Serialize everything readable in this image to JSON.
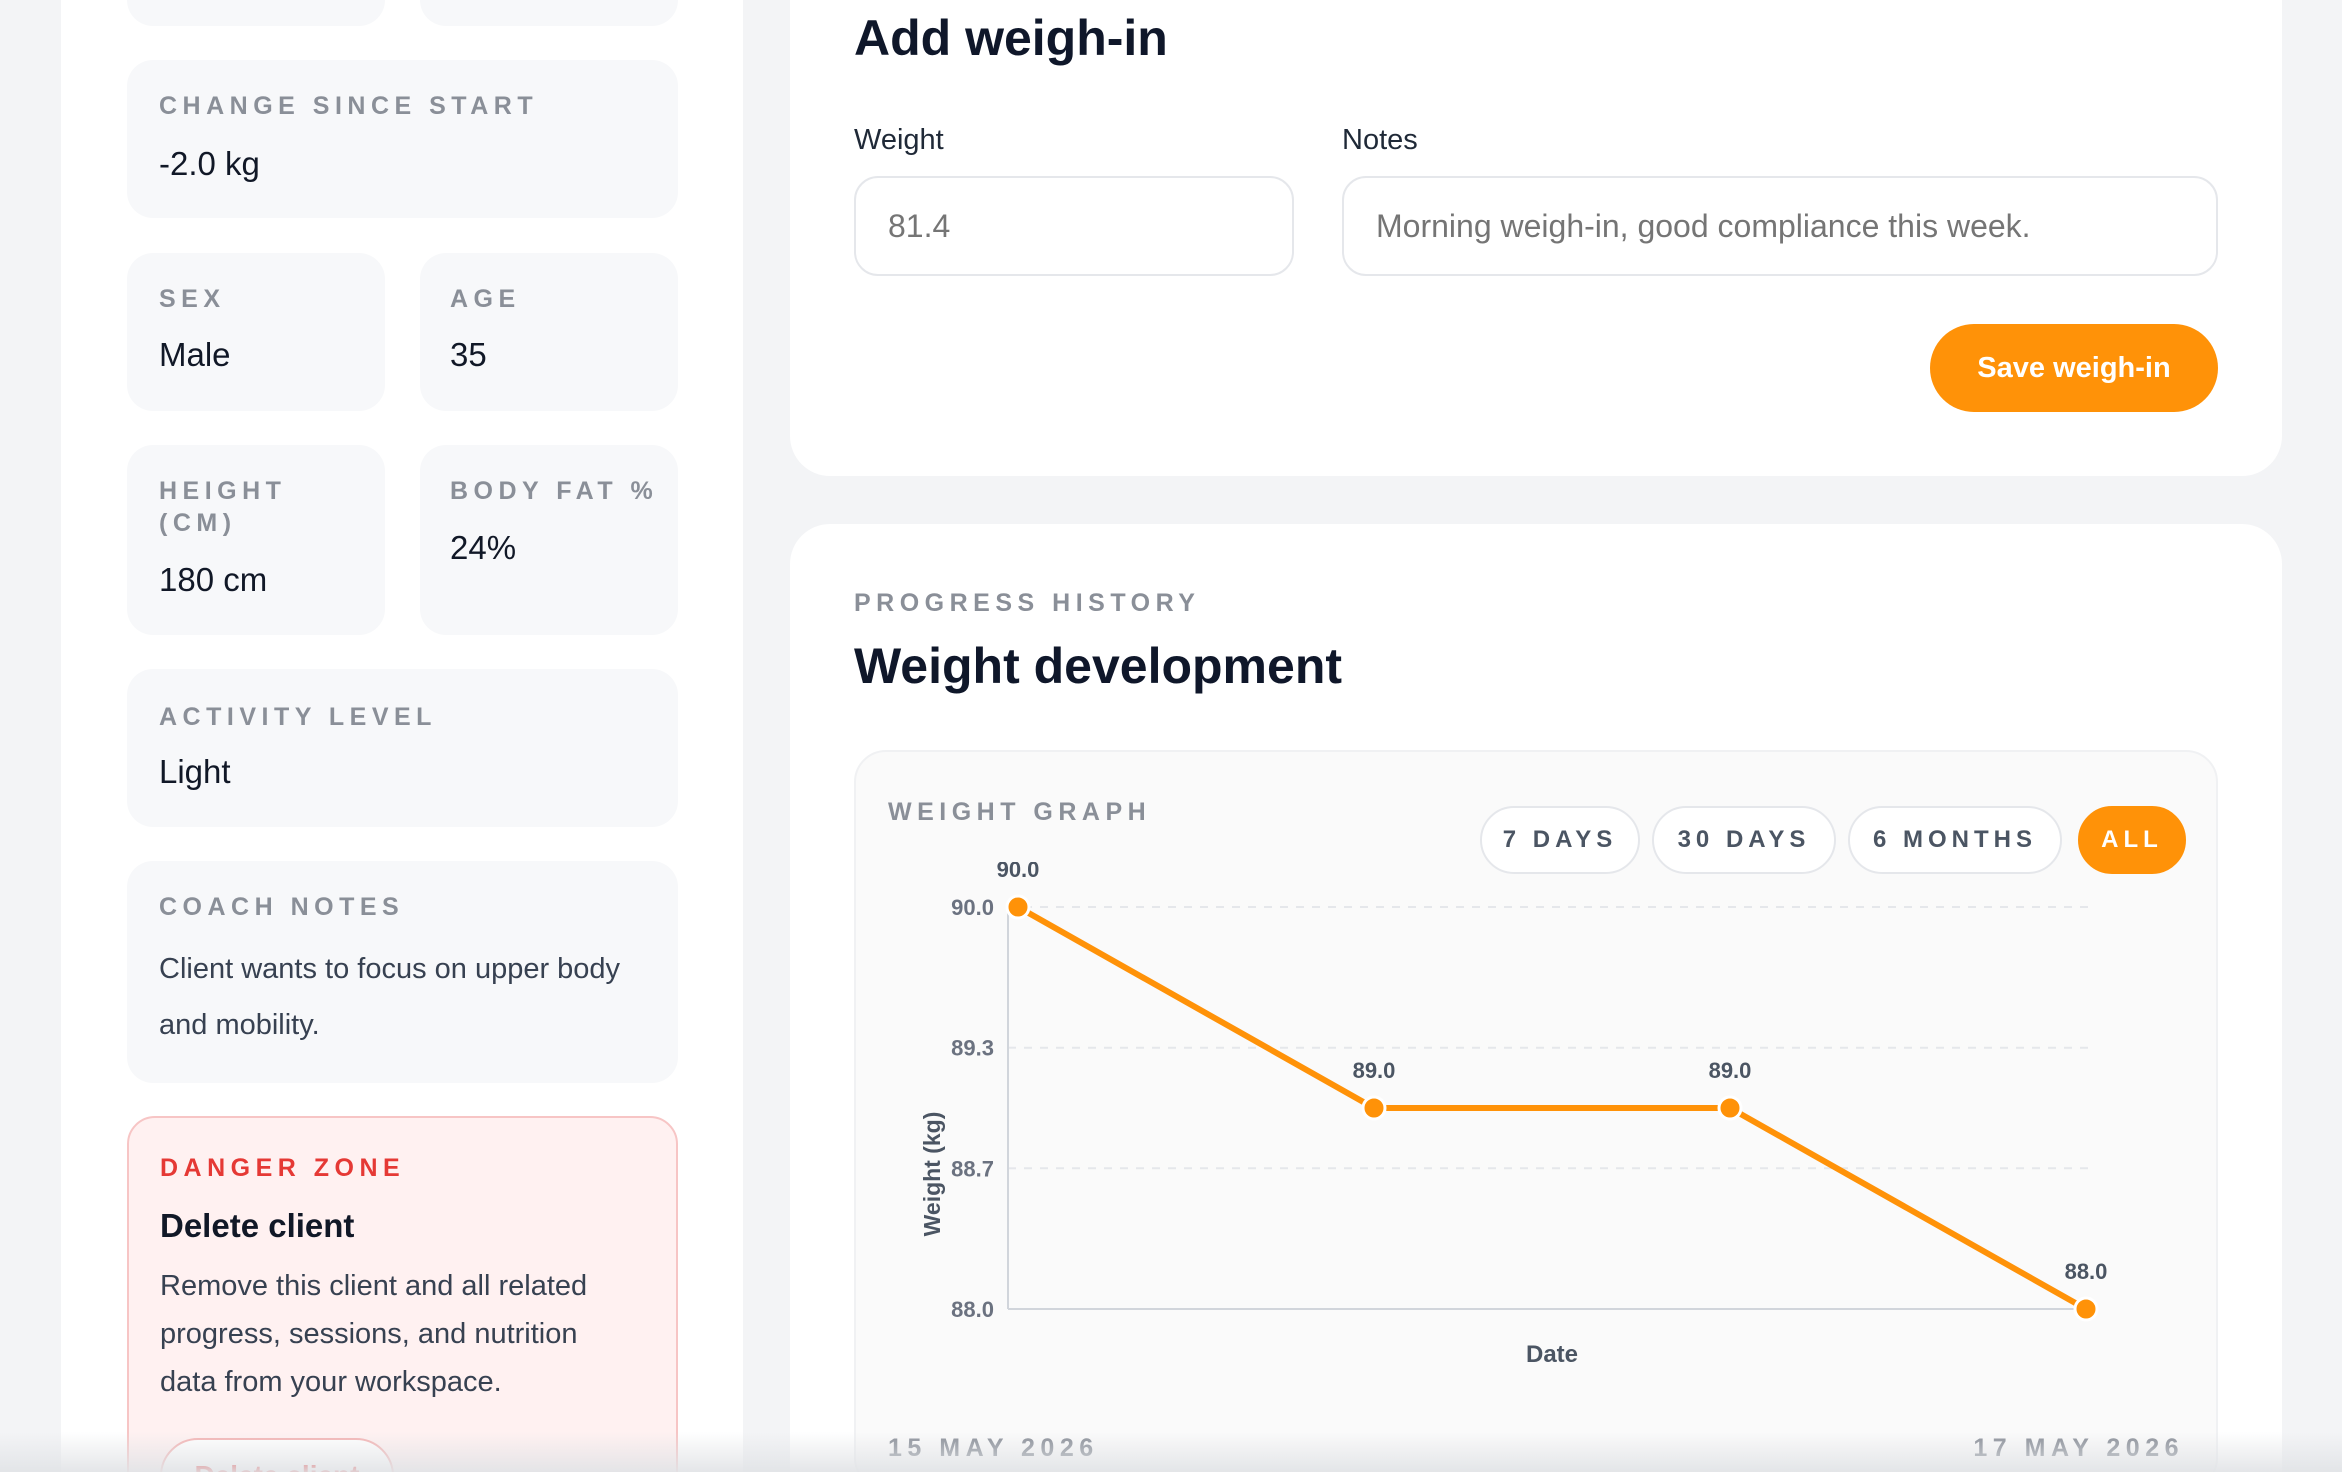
{
  "profile": {
    "change_label": "CHANGE SINCE START",
    "change_value": "-2.0 kg",
    "sex_label": "SEX",
    "sex_value": "Male",
    "age_label": "AGE",
    "age_value": "35",
    "height_label_line1": "HEIGHT",
    "height_label_line2": "(CM)",
    "height_value": "180 cm",
    "bodyfat_label": "BODY FAT %",
    "bodyfat_value": "24%",
    "activity_label": "ACTIVITY LEVEL",
    "activity_value": "Light",
    "notes_label": "COACH NOTES",
    "notes_line1": "Client wants to focus on upper body",
    "notes_line2": "and mobility."
  },
  "danger_zone": {
    "label": "DANGER ZONE",
    "title": "Delete client",
    "line1": "Remove this client and all related",
    "line2": "progress, sessions, and nutrition",
    "line3": "data from your workspace.",
    "button": "Delete client"
  },
  "weigh_in": {
    "title": "Add weigh-in",
    "weight_label": "Weight",
    "weight_placeholder": "81.4",
    "notes_label": "Notes",
    "notes_placeholder": "Morning weigh-in, good compliance this week.",
    "save_button": "Save weigh-in"
  },
  "progress": {
    "eyebrow": "PROGRESS HISTORY",
    "title": "Weight development",
    "graph_label": "WEIGHT GRAPH",
    "ranges": [
      "7 DAYS",
      "30 DAYS",
      "6 MONTHS",
      "ALL"
    ],
    "active_range": "ALL",
    "start_date": "15 MAY 2026",
    "end_date": "17 MAY 2026"
  },
  "chart_data": {
    "type": "line",
    "xlabel": "Date",
    "ylabel": "Weight (kg)",
    "y_ticks": [
      "90.0",
      "89.3",
      "88.7",
      "88.0"
    ],
    "ylim": [
      88.0,
      90.0
    ],
    "series": [
      {
        "values": [
          90.0,
          89.0,
          89.0,
          88.0
        ]
      }
    ],
    "data_labels": [
      "90.0",
      "89.0",
      "89.0",
      "88.0"
    ],
    "grid": true,
    "color": "#ff9208"
  }
}
